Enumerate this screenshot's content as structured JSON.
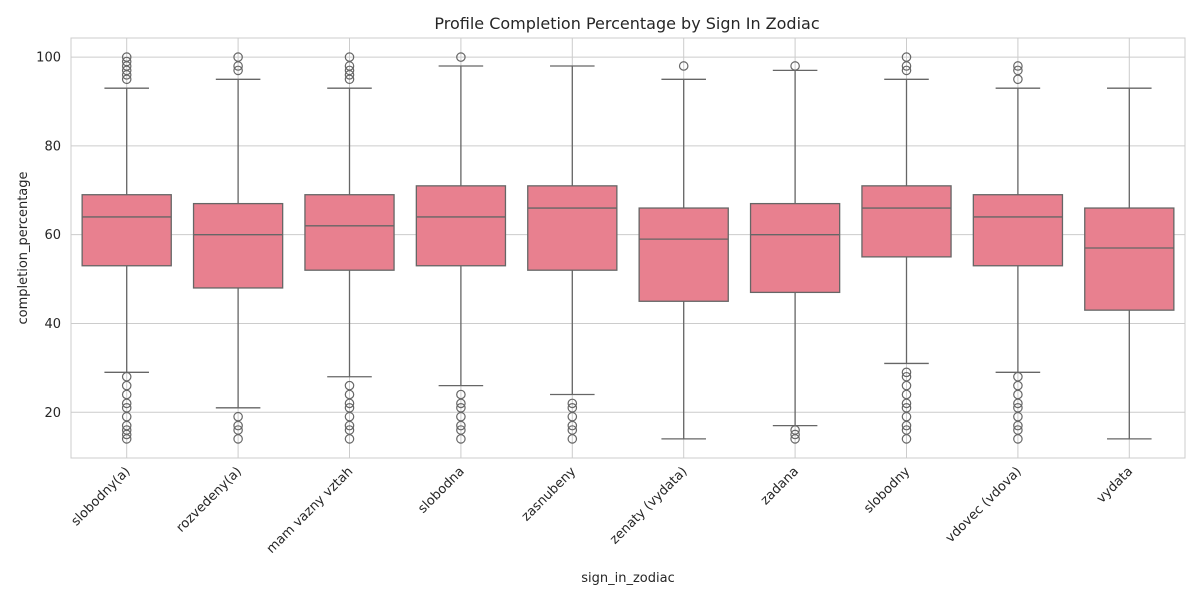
{
  "chart_data": {
    "type": "box",
    "title": "Profile Completion Percentage by Sign In Zodiac",
    "xlabel": "sign_in_zodiac",
    "ylabel": "completion_percentage",
    "ylim": [
      9.7,
      104.3
    ],
    "yticks": [
      20,
      40,
      60,
      80,
      100
    ],
    "grid": true,
    "box_color": "#e8808f",
    "line_color": "#666666",
    "categories": [
      "slobodny(a)",
      "rozvedeny(a)",
      "mam vazny vztah",
      "slobodna",
      "zasnubeny",
      "zenaty (vydata)",
      "zadana",
      "slobodny",
      "vdovec (vdova)",
      "vydata"
    ],
    "boxes": [
      {
        "whisker_low": 29,
        "q1": 53,
        "median": 64,
        "q3": 69,
        "whisker_high": 93,
        "outliers": [
          14,
          15,
          16,
          17,
          19,
          21,
          22,
          24,
          26,
          28,
          95,
          96,
          97,
          98,
          99,
          100
        ]
      },
      {
        "whisker_low": 21,
        "q1": 48,
        "median": 60,
        "q3": 67,
        "whisker_high": 95,
        "outliers": [
          14,
          16,
          17,
          19,
          97,
          98,
          100
        ]
      },
      {
        "whisker_low": 28,
        "q1": 52,
        "median": 62,
        "q3": 69,
        "whisker_high": 93,
        "outliers": [
          14,
          16,
          17,
          19,
          21,
          22,
          24,
          26,
          95,
          96,
          97,
          98,
          100
        ]
      },
      {
        "whisker_low": 26,
        "q1": 53,
        "median": 64,
        "q3": 71,
        "whisker_high": 98,
        "outliers": [
          14,
          16,
          17,
          19,
          21,
          22,
          24,
          100
        ]
      },
      {
        "whisker_low": 24,
        "q1": 52,
        "median": 66,
        "q3": 71,
        "whisker_high": 98,
        "outliers": [
          14,
          16,
          17,
          19,
          21,
          22
        ]
      },
      {
        "whisker_low": 14,
        "q1": 45,
        "median": 59,
        "q3": 66,
        "whisker_high": 95,
        "outliers": [
          98
        ]
      },
      {
        "whisker_low": 17,
        "q1": 47,
        "median": 60,
        "q3": 67,
        "whisker_high": 97,
        "outliers": [
          14,
          15,
          16,
          98
        ]
      },
      {
        "whisker_low": 31,
        "q1": 55,
        "median": 66,
        "q3": 71,
        "whisker_high": 95,
        "outliers": [
          14,
          16,
          17,
          19,
          21,
          22,
          24,
          26,
          28,
          29,
          97,
          98,
          100
        ]
      },
      {
        "whisker_low": 29,
        "q1": 53,
        "median": 64,
        "q3": 69,
        "whisker_high": 93,
        "outliers": [
          14,
          16,
          17,
          19,
          21,
          22,
          24,
          26,
          28,
          95,
          97,
          98
        ]
      },
      {
        "whisker_low": 14,
        "q1": 43,
        "median": 57,
        "q3": 66,
        "whisker_high": 93,
        "outliers": []
      }
    ]
  }
}
